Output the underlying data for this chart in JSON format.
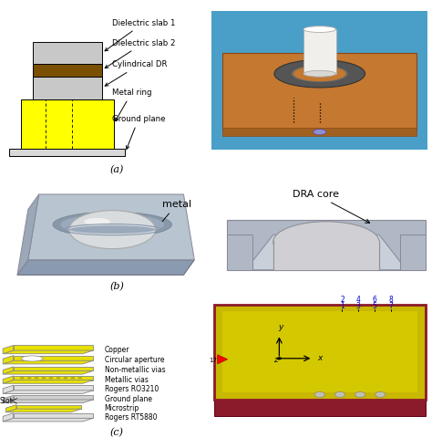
{
  "bg_color": "#ffffff",
  "panel_a_colors": {
    "slab1": "#c8c8c8",
    "slab2": "#7a5000",
    "cyl_dr": "#c8c8c8",
    "metal_ring": "#ffff00",
    "ground_plane": "#d8d8d8"
  },
  "panel_a_labels": [
    "Dielectric slab 1",
    "Dielectric slab 2",
    "Cylindrical DR",
    "Metal ring",
    "Ground plane"
  ],
  "panel_b_left_label": "metal",
  "panel_b_right_label": "DRA core",
  "panel_c_labels": [
    "Copper",
    "Circular aperture",
    "Non-metallic vias",
    "Metallic vias",
    "Rogers RO3210",
    "Ground plane",
    "Microstrip",
    "Rogers RT5880"
  ],
  "slot_label": "Slot",
  "label_a": "(a)",
  "label_b": "(b)",
  "label_c": "(c)"
}
